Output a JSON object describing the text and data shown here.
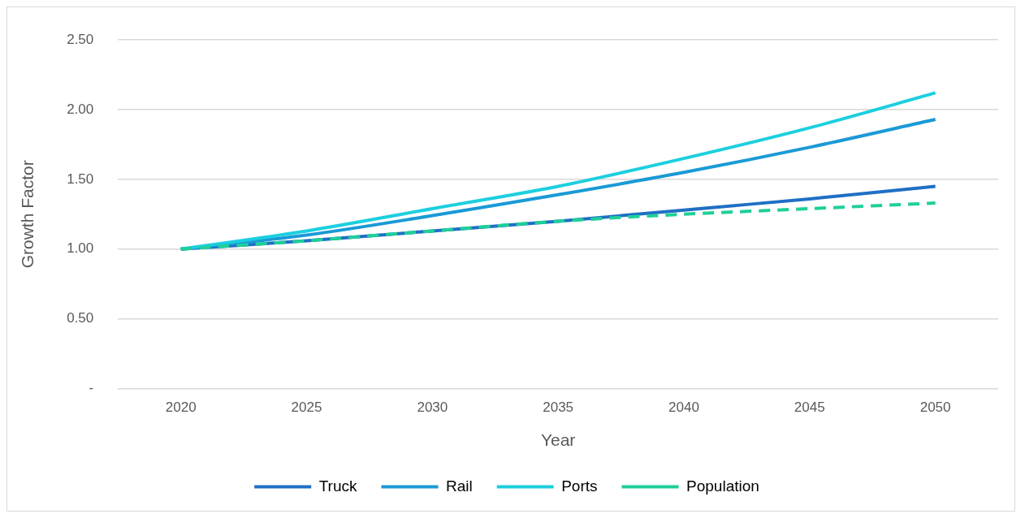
{
  "chart_data": {
    "type": "line",
    "xlabel": "Year",
    "ylabel": "Growth Factor",
    "categories": [
      "2020",
      "2025",
      "2030",
      "2035",
      "2040",
      "2045",
      "2050"
    ],
    "series": [
      {
        "name": "Truck",
        "color": "#1f6fc5",
        "values": [
          1.0,
          1.06,
          1.13,
          1.2,
          1.28,
          1.36,
          1.45
        ]
      },
      {
        "name": "Rail",
        "color": "#1a9ad6",
        "values": [
          1.0,
          1.1,
          1.24,
          1.39,
          1.55,
          1.73,
          1.93
        ]
      },
      {
        "name": "Ports",
        "color": "#1ccfdf",
        "values": [
          1.0,
          1.13,
          1.29,
          1.45,
          1.65,
          1.87,
          2.12
        ]
      },
      {
        "name": "Population",
        "color": "#1fcf9a",
        "line_style": "dashed",
        "values": [
          1.0,
          1.06,
          1.13,
          1.2,
          1.25,
          1.29,
          1.33
        ]
      }
    ],
    "ylim": [
      0,
      2.5
    ],
    "yticks": [
      {
        "value": 0,
        "label": "-"
      },
      {
        "value": 0.5,
        "label": "0.50"
      },
      {
        "value": 1,
        "label": "1.00"
      },
      {
        "value": 1.5,
        "label": "1.50"
      },
      {
        "value": 2,
        "label": "2.00"
      },
      {
        "value": 2.5,
        "label": "2.50"
      }
    ],
    "grid": "y",
    "legend": "bottom",
    "marker": "none"
  }
}
